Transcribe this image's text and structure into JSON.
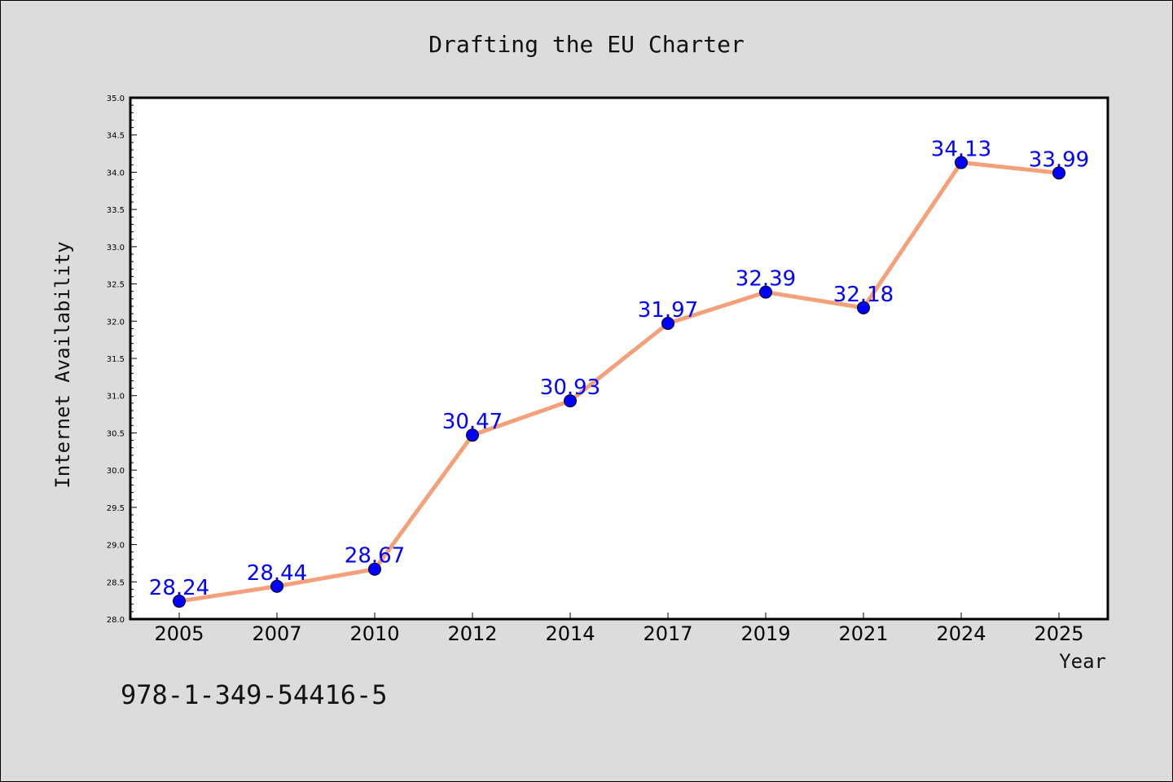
{
  "chart_data": {
    "type": "line",
    "title": "Drafting the EU Charter",
    "xlabel": "Year",
    "ylabel": "Internet Availability",
    "categories": [
      "2005",
      "2007",
      "2010",
      "2012",
      "2014",
      "2017",
      "2019",
      "2021",
      "2024",
      "2025"
    ],
    "values": [
      28.24,
      28.44,
      28.67,
      30.47,
      30.93,
      31.97,
      32.39,
      32.18,
      34.13,
      33.99
    ],
    "data_labels": [
      "28.24",
      "28.44",
      "28.67",
      "30.47",
      "30.93",
      "31.97",
      "32.39",
      "32.18",
      "34.13",
      "33.99"
    ],
    "ylim": [
      28.0,
      35.0
    ],
    "yticks": [
      "28.0",
      "28.5",
      "29.0",
      "29.5",
      "30.0",
      "30.5",
      "31.0",
      "31.5",
      "32.0",
      "32.5",
      "33.0",
      "33.5",
      "34.0",
      "34.5",
      "35.0"
    ],
    "grid": false,
    "line_color": "#f4a07a",
    "marker_color": "#0000ff",
    "label_color": "#0000ff",
    "background": "#dcdcdc",
    "plot_background": "#ffffff"
  },
  "annotation": {
    "isbn": "978-1-349-54416-5"
  }
}
